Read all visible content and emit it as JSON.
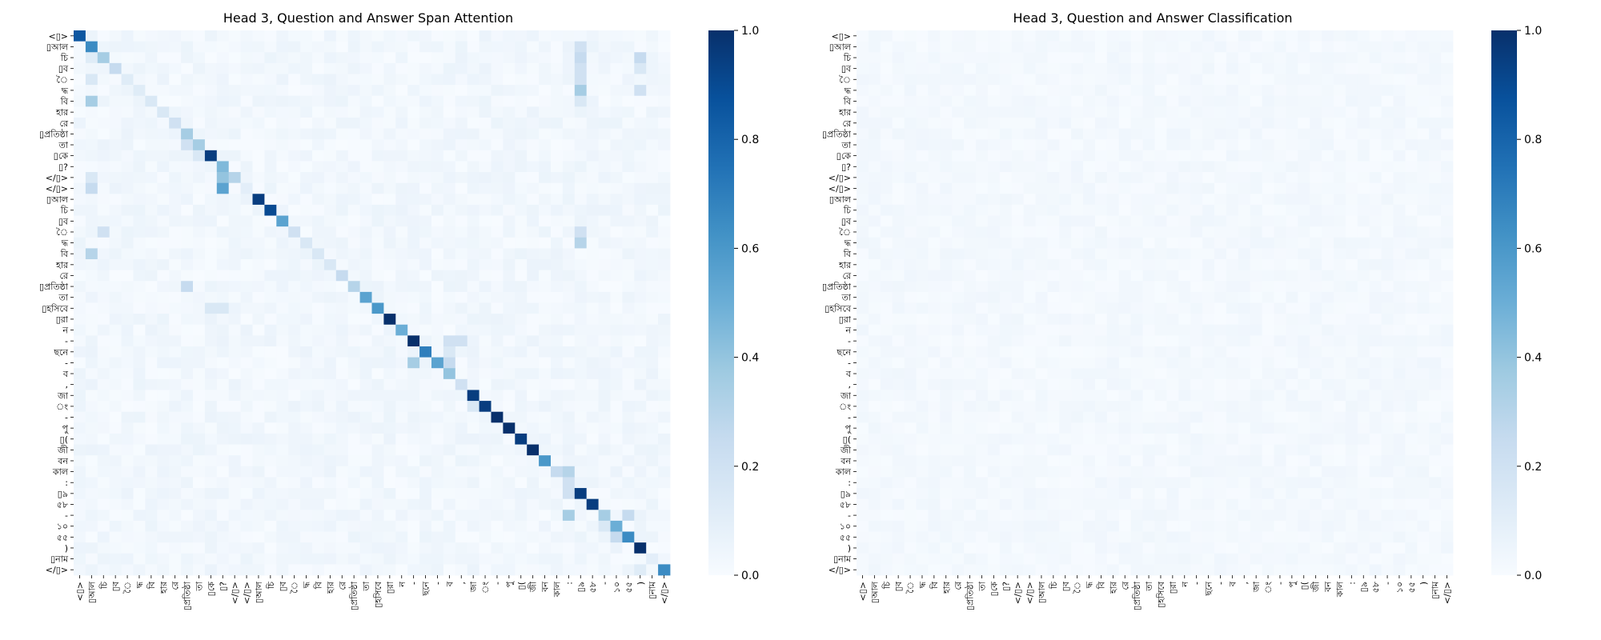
{
  "chart_data": [
    {
      "type": "heatmap",
      "title": "Head 3, Question and Answer Span Attention",
      "colormap": "Blues",
      "vmin": 0.0,
      "vmax": 1.0,
      "colorbar_ticks": [
        "0.0",
        "0.2",
        "0.4",
        "0.6",
        "0.8",
        "1.0"
      ],
      "highlight_color": "#ff0000",
      "labels": [
        "<▯>",
        "▯আল",
        "চি",
        "▯ব",
        "ৈ",
        "দ্ধ",
        "বি",
        "হার",
        "রে",
        "▯প্রতিষ্ঠা",
        "তা",
        "▯কে",
        "▯?",
        "</▯>",
        "</▯>",
        "▯আল",
        "চি",
        "▯ব",
        "ৈ",
        "দ্ধ",
        "বি",
        "হার",
        "রে",
        "▯প্রতিষ্ঠা",
        "তা",
        "▯হসিবে",
        "▯রা",
        "ন",
        "-",
        "ছনে",
        "-",
        "ব",
        ",",
        "জা",
        "ং",
        "-",
        "পু",
        "▯(",
        "জী",
        "বন",
        "কাল",
        ":",
        "▯৯",
        "৫৮",
        "-",
        "১০",
        "৫৫",
        ")",
        "▯নাম",
        "</▯>"
      ],
      "highlighted_labels": [
        26,
        27,
        28,
        29,
        30,
        31,
        32,
        33,
        34,
        35,
        36
      ],
      "diagonal": [
        0.85,
        0.65,
        0.35,
        0.25,
        0.12,
        0.12,
        0.15,
        0.15,
        0.2,
        0.35,
        0.35,
        0.95,
        0.5,
        0.3,
        0.1,
        0.95,
        0.9,
        0.55,
        0.2,
        0.15,
        0.15,
        0.15,
        0.25,
        0.3,
        0.55,
        0.6,
        1.0,
        0.5,
        1.0,
        0.7,
        0.55,
        0.4,
        0.2,
        0.95,
        0.95,
        1.0,
        1.0,
        0.95,
        1.0,
        0.6,
        0.25,
        0.2,
        0.95,
        0.95,
        0.15,
        0.5,
        0.65,
        1.0,
        0.1,
        0.65
      ],
      "off_diagonal": [
        {
          "row": 1,
          "col": 42,
          "value": 0.2
        },
        {
          "row": 2,
          "col": 42,
          "value": 0.25
        },
        {
          "row": 3,
          "col": 42,
          "value": 0.2
        },
        {
          "row": 4,
          "col": 42,
          "value": 0.2
        },
        {
          "row": 5,
          "col": 42,
          "value": 0.35
        },
        {
          "row": 6,
          "col": 42,
          "value": 0.15
        },
        {
          "row": 2,
          "col": 47,
          "value": 0.25
        },
        {
          "row": 3,
          "col": 47,
          "value": 0.15
        },
        {
          "row": 5,
          "col": 47,
          "value": 0.2
        },
        {
          "row": 7,
          "col": 51,
          "value": 0.25
        },
        {
          "row": 8,
          "col": 51,
          "value": 0.15
        },
        {
          "row": 6,
          "col": 1,
          "value": 0.35
        },
        {
          "row": 4,
          "col": 1,
          "value": 0.15
        },
        {
          "row": 2,
          "col": 1,
          "value": 0.12
        },
        {
          "row": 13,
          "col": 12,
          "value": 0.4
        },
        {
          "row": 14,
          "col": 12,
          "value": 0.55
        },
        {
          "row": 12,
          "col": 12,
          "value": 0.45
        },
        {
          "row": 14,
          "col": 1,
          "value": 0.25
        },
        {
          "row": 13,
          "col": 1,
          "value": 0.15
        },
        {
          "row": 10,
          "col": 9,
          "value": 0.2
        },
        {
          "row": 11,
          "col": 10,
          "value": 0.15
        },
        {
          "row": 19,
          "col": 42,
          "value": 0.3
        },
        {
          "row": 18,
          "col": 42,
          "value": 0.2
        },
        {
          "row": 20,
          "col": 1,
          "value": 0.3
        },
        {
          "row": 18,
          "col": 2,
          "value": 0.2
        },
        {
          "row": 21,
          "col": 50,
          "value": 0.3
        },
        {
          "row": 22,
          "col": 50,
          "value": 0.3
        },
        {
          "row": 23,
          "col": 9,
          "value": 0.25
        },
        {
          "row": 25,
          "col": 11,
          "value": 0.15
        },
        {
          "row": 25,
          "col": 12,
          "value": 0.15
        },
        {
          "row": 30,
          "col": 28,
          "value": 0.35
        },
        {
          "row": 28,
          "col": 31,
          "value": 0.2
        },
        {
          "row": 28,
          "col": 32,
          "value": 0.2
        },
        {
          "row": 29,
          "col": 31,
          "value": 0.15
        },
        {
          "row": 30,
          "col": 31,
          "value": 0.25
        },
        {
          "row": 34,
          "col": 33,
          "value": 0.15
        },
        {
          "row": 40,
          "col": 41,
          "value": 0.3
        },
        {
          "row": 42,
          "col": 41,
          "value": 0.2
        },
        {
          "row": 44,
          "col": 41,
          "value": 0.35
        },
        {
          "row": 44,
          "col": 44,
          "value": 0.35
        },
        {
          "row": 44,
          "col": 46,
          "value": 0.25
        },
        {
          "row": 46,
          "col": 45,
          "value": 0.25
        },
        {
          "row": 45,
          "col": 44,
          "value": 0.15
        },
        {
          "row": 49,
          "col": 47,
          "value": 0.12
        }
      ]
    },
    {
      "type": "heatmap",
      "title": "Head 3, Question and Answer Classification",
      "colormap": "Blues",
      "vmin": 0.0,
      "vmax": 1.0,
      "colorbar_ticks": [
        "0.0",
        "0.2",
        "0.4",
        "0.6",
        "0.8",
        "1.0"
      ],
      "highlight_color": "#ff0000",
      "labels": [
        "<▯>",
        "▯আল",
        "চি",
        "▯ব",
        "ৈ",
        "দ্ধ",
        "বি",
        "হার",
        "রে",
        "▯প্রতিষ্ঠা",
        "তা",
        "▯কে",
        "▯?",
        "</▯>",
        "</▯>",
        "▯আল",
        "চি",
        "▯ব",
        "ৈ",
        "দ্ধ",
        "বি",
        "হার",
        "রে",
        "▯প্রতিষ্ঠা",
        "তা",
        "▯হসিবে",
        "▯রা",
        "ন",
        "-",
        "ছনে",
        "-",
        "ব",
        ",",
        "জা",
        "ং",
        "-",
        "পু",
        "▯(",
        "জী",
        "বন",
        "কাল",
        ":",
        "▯৯",
        "৫৮",
        "-",
        "১০",
        "৫৫",
        ")",
        "▯নাম",
        "</▯>"
      ],
      "highlighted_labels": [
        26,
        27,
        28,
        29,
        30,
        31,
        32,
        33,
        34,
        35,
        36
      ],
      "value_range": [
        0.0,
        0.04
      ]
    }
  ]
}
